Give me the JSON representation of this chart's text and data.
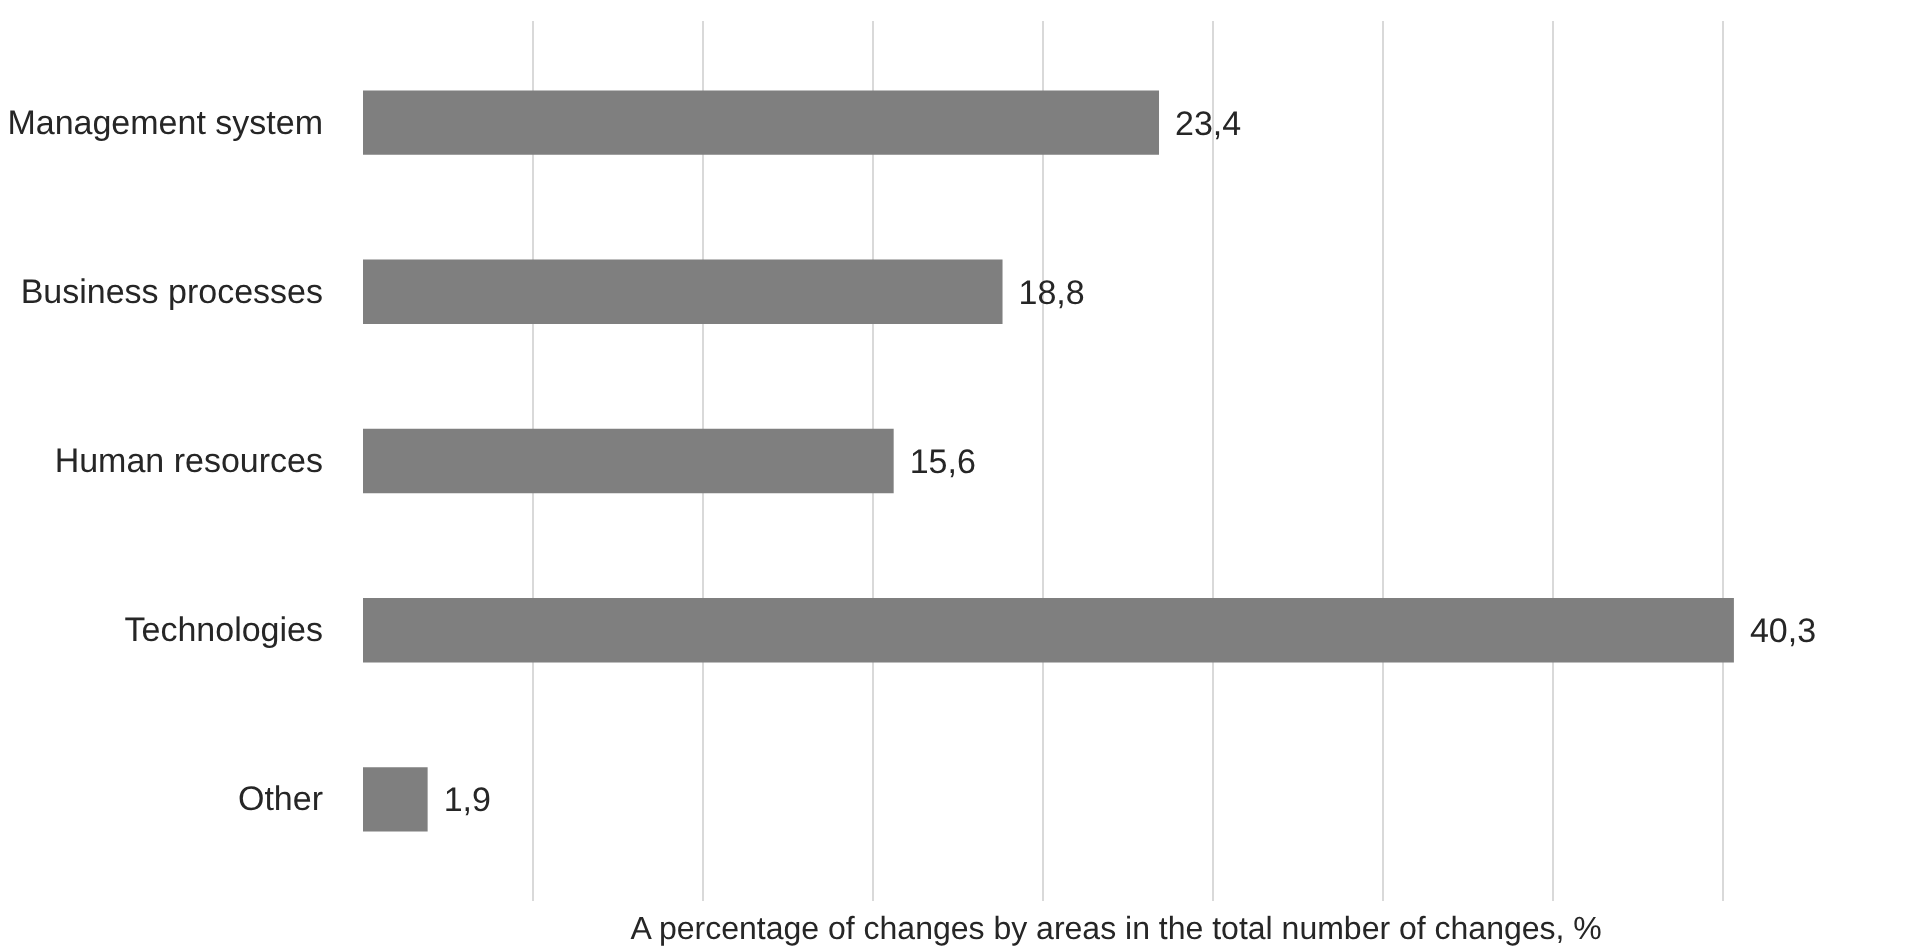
{
  "chart_data": {
    "type": "bar",
    "orientation": "horizontal",
    "xlabel": "A percentage of changes by areas in the total number of changes, %",
    "categories": [
      "Management system",
      "Business processes",
      "Human resources",
      "Technologies",
      "Other"
    ],
    "values": [
      23.4,
      18.8,
      15.6,
      40.3,
      1.9
    ],
    "value_labels": [
      "23,4",
      "18,8",
      "15,6",
      "40,3",
      "1,9"
    ],
    "color": "#7f7f7f",
    "grid": "x",
    "tick_labels": "y"
  }
}
